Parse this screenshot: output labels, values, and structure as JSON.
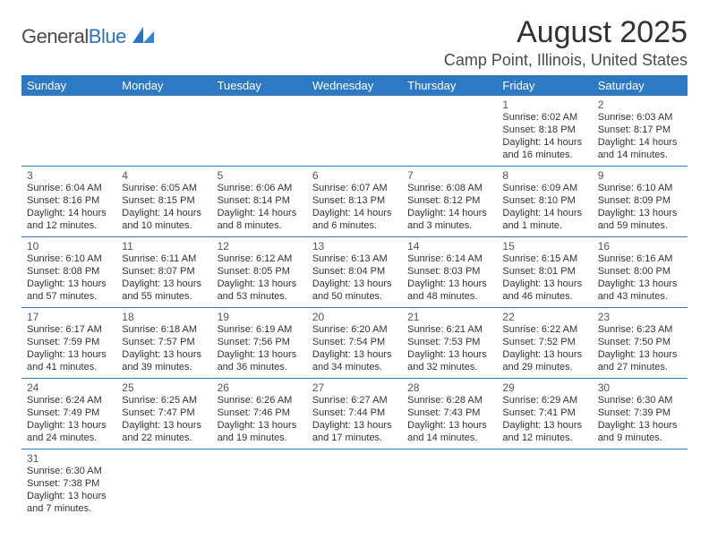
{
  "logo": {
    "text_a": "General",
    "text_b": "Blue"
  },
  "title": "August 2025",
  "location": "Camp Point, Illinois, United States",
  "colors": {
    "header_bg": "#2e79c3",
    "header_fg": "#ffffff",
    "rule": "#2e79c3",
    "text": "#323232",
    "logo_blue": "#2a74c0"
  },
  "typography": {
    "title_fontsize_pt": 26,
    "location_fontsize_pt": 14,
    "dayhead_fontsize_pt": 10,
    "cell_fontsize_pt": 8.5
  },
  "calendar": {
    "columns": [
      "Sunday",
      "Monday",
      "Tuesday",
      "Wednesday",
      "Thursday",
      "Friday",
      "Saturday"
    ],
    "col_count": 7,
    "row_count": 6,
    "start_weekday_index": 5,
    "days": [
      {
        "n": 1,
        "sunrise": "6:02 AM",
        "sunset": "8:18 PM",
        "day_h": 14,
        "day_m": 16
      },
      {
        "n": 2,
        "sunrise": "6:03 AM",
        "sunset": "8:17 PM",
        "day_h": 14,
        "day_m": 14
      },
      {
        "n": 3,
        "sunrise": "6:04 AM",
        "sunset": "8:16 PM",
        "day_h": 14,
        "day_m": 12
      },
      {
        "n": 4,
        "sunrise": "6:05 AM",
        "sunset": "8:15 PM",
        "day_h": 14,
        "day_m": 10
      },
      {
        "n": 5,
        "sunrise": "6:06 AM",
        "sunset": "8:14 PM",
        "day_h": 14,
        "day_m": 8
      },
      {
        "n": 6,
        "sunrise": "6:07 AM",
        "sunset": "8:13 PM",
        "day_h": 14,
        "day_m": 6
      },
      {
        "n": 7,
        "sunrise": "6:08 AM",
        "sunset": "8:12 PM",
        "day_h": 14,
        "day_m": 3
      },
      {
        "n": 8,
        "sunrise": "6:09 AM",
        "sunset": "8:10 PM",
        "day_h": 14,
        "day_m": 1
      },
      {
        "n": 9,
        "sunrise": "6:10 AM",
        "sunset": "8:09 PM",
        "day_h": 13,
        "day_m": 59
      },
      {
        "n": 10,
        "sunrise": "6:10 AM",
        "sunset": "8:08 PM",
        "day_h": 13,
        "day_m": 57
      },
      {
        "n": 11,
        "sunrise": "6:11 AM",
        "sunset": "8:07 PM",
        "day_h": 13,
        "day_m": 55
      },
      {
        "n": 12,
        "sunrise": "6:12 AM",
        "sunset": "8:05 PM",
        "day_h": 13,
        "day_m": 53
      },
      {
        "n": 13,
        "sunrise": "6:13 AM",
        "sunset": "8:04 PM",
        "day_h": 13,
        "day_m": 50
      },
      {
        "n": 14,
        "sunrise": "6:14 AM",
        "sunset": "8:03 PM",
        "day_h": 13,
        "day_m": 48
      },
      {
        "n": 15,
        "sunrise": "6:15 AM",
        "sunset": "8:01 PM",
        "day_h": 13,
        "day_m": 46
      },
      {
        "n": 16,
        "sunrise": "6:16 AM",
        "sunset": "8:00 PM",
        "day_h": 13,
        "day_m": 43
      },
      {
        "n": 17,
        "sunrise": "6:17 AM",
        "sunset": "7:59 PM",
        "day_h": 13,
        "day_m": 41
      },
      {
        "n": 18,
        "sunrise": "6:18 AM",
        "sunset": "7:57 PM",
        "day_h": 13,
        "day_m": 39
      },
      {
        "n": 19,
        "sunrise": "6:19 AM",
        "sunset": "7:56 PM",
        "day_h": 13,
        "day_m": 36
      },
      {
        "n": 20,
        "sunrise": "6:20 AM",
        "sunset": "7:54 PM",
        "day_h": 13,
        "day_m": 34
      },
      {
        "n": 21,
        "sunrise": "6:21 AM",
        "sunset": "7:53 PM",
        "day_h": 13,
        "day_m": 32
      },
      {
        "n": 22,
        "sunrise": "6:22 AM",
        "sunset": "7:52 PM",
        "day_h": 13,
        "day_m": 29
      },
      {
        "n": 23,
        "sunrise": "6:23 AM",
        "sunset": "7:50 PM",
        "day_h": 13,
        "day_m": 27
      },
      {
        "n": 24,
        "sunrise": "6:24 AM",
        "sunset": "7:49 PM",
        "day_h": 13,
        "day_m": 24
      },
      {
        "n": 25,
        "sunrise": "6:25 AM",
        "sunset": "7:47 PM",
        "day_h": 13,
        "day_m": 22
      },
      {
        "n": 26,
        "sunrise": "6:26 AM",
        "sunset": "7:46 PM",
        "day_h": 13,
        "day_m": 19
      },
      {
        "n": 27,
        "sunrise": "6:27 AM",
        "sunset": "7:44 PM",
        "day_h": 13,
        "day_m": 17
      },
      {
        "n": 28,
        "sunrise": "6:28 AM",
        "sunset": "7:43 PM",
        "day_h": 13,
        "day_m": 14
      },
      {
        "n": 29,
        "sunrise": "6:29 AM",
        "sunset": "7:41 PM",
        "day_h": 13,
        "day_m": 12
      },
      {
        "n": 30,
        "sunrise": "6:30 AM",
        "sunset": "7:39 PM",
        "day_h": 13,
        "day_m": 9
      },
      {
        "n": 31,
        "sunrise": "6:30 AM",
        "sunset": "7:38 PM",
        "day_h": 13,
        "day_m": 7
      }
    ],
    "labels": {
      "sunrise": "Sunrise:",
      "sunset": "Sunset:",
      "daylight_prefix": "Daylight:",
      "hours_word": "hours",
      "and_word": "and",
      "minutes_word": "minutes",
      "minute_word": "minute"
    }
  }
}
